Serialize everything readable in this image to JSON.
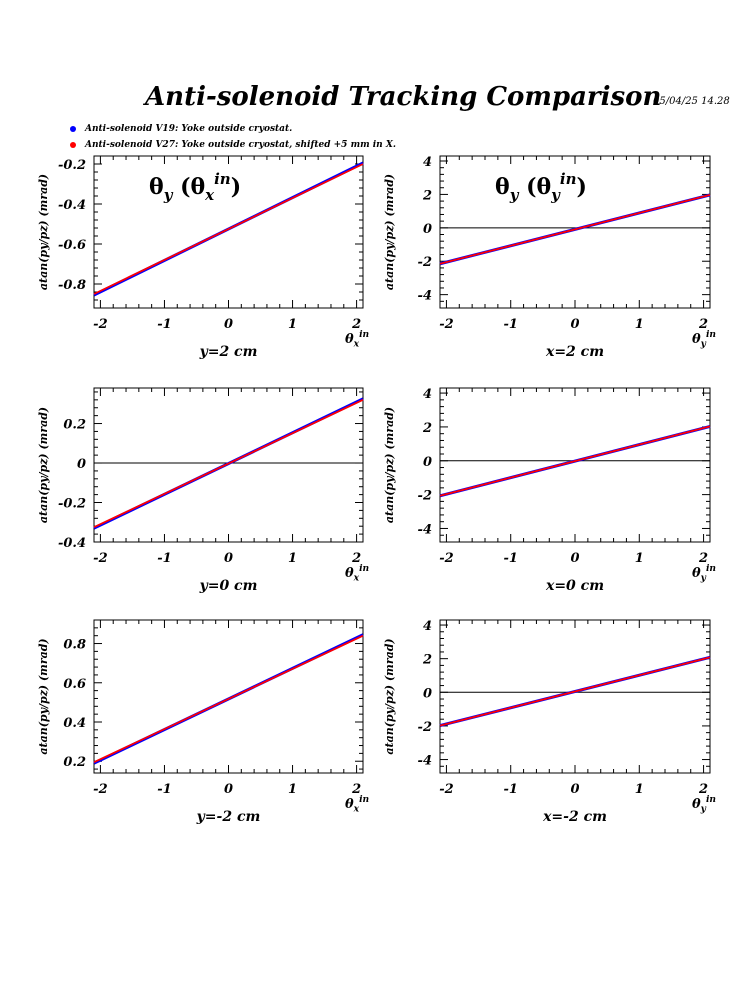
{
  "header": {
    "title": "Anti-solenoid Tracking Comparison",
    "datestamp": "05/04/25   14.28"
  },
  "legend": [
    {
      "label": "Anti-solenoid V19: Yoke outside cryostat.",
      "color": "#0000ff"
    },
    {
      "label": "Anti-solenoid V27: Yoke outside cryostat, shifted +5 mm in X.",
      "color": "#ff0000"
    }
  ],
  "chart_data": [
    {
      "type": "line",
      "panel": "top-left",
      "ylabel": "atan(py/pz) (mrad)",
      "xlabel_main": "θ",
      "xlabel_sub": "x",
      "xlabel_sup": "in",
      "condition": "y=2 cm",
      "plot_title": {
        "main": "θ",
        "sub": "y",
        "paren_main": "θ",
        "paren_sub": "x",
        "paren_sup": "in"
      },
      "xlim": [
        -2.1,
        2.1
      ],
      "ylim": [
        -0.92,
        -0.16
      ],
      "xticks": [
        -2,
        -1,
        0,
        1,
        2
      ],
      "yticks": [
        -0.8,
        -0.6,
        -0.4,
        -0.2
      ],
      "ytick_labels": [
        "-0.8",
        "-0.6",
        "-0.4",
        "-0.2"
      ],
      "zero_line": false,
      "series": [
        {
          "name": "Anti-solenoid V19: Yoke outside cryostat.",
          "color": "#0000ff",
          "x": [
            -2.1,
            2.1
          ],
          "y": [
            -0.855,
            -0.195
          ]
        },
        {
          "name": "Anti-solenoid V27: Yoke outside cryostat, shifted +5 mm in X.",
          "color": "#ff0000",
          "x": [
            -2.1,
            2.1
          ],
          "y": [
            -0.85,
            -0.2
          ]
        }
      ]
    },
    {
      "type": "line",
      "panel": "top-right",
      "ylabel": "atan(py/pz) (mrad)",
      "xlabel_main": "θ",
      "xlabel_sub": "y",
      "xlabel_sup": "in",
      "condition": "x=2 cm",
      "plot_title": {
        "main": "θ",
        "sub": "y",
        "paren_main": "θ",
        "paren_sub": "y",
        "paren_sup": "in"
      },
      "xlim": [
        -2.1,
        2.1
      ],
      "ylim": [
        -4.8,
        4.3
      ],
      "xticks": [
        -2,
        -1,
        0,
        1,
        2
      ],
      "yticks": [
        -4,
        -2,
        0,
        2,
        4
      ],
      "ytick_labels": [
        "-4",
        "-2",
        "0",
        "2",
        "4"
      ],
      "zero_line": true,
      "series": [
        {
          "name": "Anti-solenoid V19: Yoke outside cryostat.",
          "color": "#0000ff",
          "x": [
            -2.1,
            2.1
          ],
          "y": [
            -2.15,
            1.97
          ]
        },
        {
          "name": "Anti-solenoid V27: Yoke outside cryostat, shifted +5 mm in X.",
          "color": "#ff0000",
          "x": [
            -2.1,
            2.1
          ],
          "y": [
            -2.15,
            1.97
          ]
        }
      ]
    },
    {
      "type": "line",
      "panel": "middle-left",
      "ylabel": "atan(py/pz) (mrad)",
      "xlabel_main": "θ",
      "xlabel_sub": "x",
      "xlabel_sup": "in",
      "condition": "y=0 cm",
      "xlim": [
        -2.1,
        2.1
      ],
      "ylim": [
        -0.4,
        0.38
      ],
      "xticks": [
        -2,
        -1,
        0,
        1,
        2
      ],
      "yticks": [
        -0.4,
        -0.2,
        0,
        0.2
      ],
      "ytick_labels": [
        "-0.4",
        "-0.2",
        "0",
        "0.2"
      ],
      "zero_line": true,
      "series": [
        {
          "name": "Anti-solenoid V19: Yoke outside cryostat.",
          "color": "#0000ff",
          "x": [
            -2.1,
            2.1
          ],
          "y": [
            -0.33,
            0.325
          ]
        },
        {
          "name": "Anti-solenoid V27: Yoke outside cryostat, shifted +5 mm in X.",
          "color": "#ff0000",
          "x": [
            -2.1,
            2.1
          ],
          "y": [
            -0.325,
            0.32
          ]
        }
      ]
    },
    {
      "type": "line",
      "panel": "middle-right",
      "ylabel": "atan(py/pz) (mrad)",
      "xlabel_main": "θ",
      "xlabel_sub": "y",
      "xlabel_sup": "in",
      "condition": "x=0 cm",
      "xlim": [
        -2.1,
        2.1
      ],
      "ylim": [
        -4.8,
        4.3
      ],
      "xticks": [
        -2,
        -1,
        0,
        1,
        2
      ],
      "yticks": [
        -4,
        -2,
        0,
        2,
        4
      ],
      "ytick_labels": [
        "-4",
        "-2",
        "0",
        "2",
        "4"
      ],
      "zero_line": true,
      "series": [
        {
          "name": "Anti-solenoid V19: Yoke outside cryostat.",
          "color": "#0000ff",
          "x": [
            -2.1,
            2.1
          ],
          "y": [
            -2.07,
            2.03
          ]
        },
        {
          "name": "Anti-solenoid V27: Yoke outside cryostat, shifted +5 mm in X.",
          "color": "#ff0000",
          "x": [
            -2.1,
            2.1
          ],
          "y": [
            -2.07,
            2.03
          ]
        }
      ]
    },
    {
      "type": "line",
      "panel": "bottom-left",
      "ylabel": "atan(py/pz) (mrad)",
      "xlabel_main": "θ",
      "xlabel_sub": "x",
      "xlabel_sup": "in",
      "condition": "y=-2 cm",
      "xlim": [
        -2.1,
        2.1
      ],
      "ylim": [
        0.14,
        0.92
      ],
      "xticks": [
        -2,
        -1,
        0,
        1,
        2
      ],
      "yticks": [
        0.2,
        0.4,
        0.6,
        0.8
      ],
      "ytick_labels": [
        "0.2",
        "0.4",
        "0.6",
        "0.8"
      ],
      "zero_line": false,
      "series": [
        {
          "name": "Anti-solenoid V19: Yoke outside cryostat.",
          "color": "#0000ff",
          "x": [
            -2.1,
            2.1
          ],
          "y": [
            0.19,
            0.845
          ]
        },
        {
          "name": "Anti-solenoid V27: Yoke outside cryostat, shifted +5 mm in X.",
          "color": "#ff0000",
          "x": [
            -2.1,
            2.1
          ],
          "y": [
            0.195,
            0.84
          ]
        }
      ]
    },
    {
      "type": "line",
      "panel": "bottom-right",
      "ylabel": "atan(py/pz) (mrad)",
      "xlabel_main": "θ",
      "xlabel_sub": "y",
      "xlabel_sup": "in",
      "condition": "x=-2 cm",
      "xlim": [
        -2.1,
        2.1
      ],
      "ylim": [
        -4.8,
        4.3
      ],
      "xticks": [
        -2,
        -1,
        0,
        1,
        2
      ],
      "yticks": [
        -4,
        -2,
        0,
        2,
        4
      ],
      "ytick_labels": [
        "-4",
        "-2",
        "0",
        "2",
        "4"
      ],
      "zero_line": true,
      "series": [
        {
          "name": "Anti-solenoid V19: Yoke outside cryostat.",
          "color": "#0000ff",
          "x": [
            -2.1,
            2.1
          ],
          "y": [
            -1.98,
            2.08
          ]
        },
        {
          "name": "Anti-solenoid V27: Yoke outside cryostat, shifted +5 mm in X.",
          "color": "#ff0000",
          "x": [
            -2.1,
            2.1
          ],
          "y": [
            -1.98,
            2.08
          ]
        }
      ]
    }
  ]
}
